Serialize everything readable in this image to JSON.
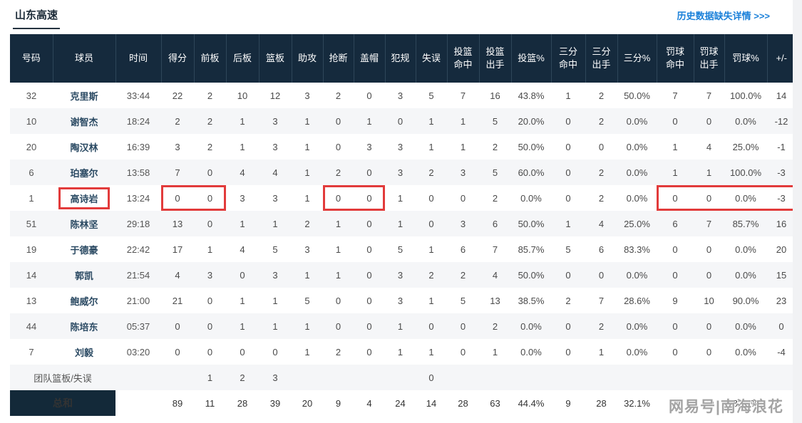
{
  "header": {
    "team_name": "山东高速",
    "history_link": "历史数据缺失详情 >>>"
  },
  "colors": {
    "header_bg": "#152a3d",
    "total_bg": "#132939",
    "accent_blue": "#1a80d9",
    "highlight_red": "#e23b3b",
    "row_alt_bg": "#f5f6f8"
  },
  "table": {
    "columns": [
      "号码",
      "球员",
      "时间",
      "得分",
      "前板",
      "后板",
      "篮板",
      "助攻",
      "抢断",
      "盖帽",
      "犯规",
      "失误",
      "投篮\n命中",
      "投篮\n出手",
      "投篮%",
      "三分\n命中",
      "三分\n出手",
      "三分%",
      "罚球\n命中",
      "罚球\n出手",
      "罚球%",
      "+/-"
    ],
    "players": [
      {
        "no": "32",
        "name": "克里斯",
        "time": "33:44",
        "stats": [
          "22",
          "2",
          "10",
          "12",
          "3",
          "2",
          "0",
          "3",
          "5",
          "7",
          "16",
          "43.8%",
          "1",
          "2",
          "50.0%",
          "7",
          "7",
          "100.0%",
          "14"
        ]
      },
      {
        "no": "10",
        "name": "谢智杰",
        "time": "18:24",
        "stats": [
          "2",
          "2",
          "1",
          "3",
          "1",
          "0",
          "1",
          "0",
          "1",
          "1",
          "5",
          "20.0%",
          "0",
          "2",
          "0.0%",
          "0",
          "0",
          "0.0%",
          "-12"
        ]
      },
      {
        "no": "20",
        "name": "陶汉林",
        "time": "16:39",
        "stats": [
          "3",
          "2",
          "1",
          "3",
          "1",
          "0",
          "3",
          "3",
          "1",
          "1",
          "2",
          "50.0%",
          "0",
          "0",
          "0.0%",
          "1",
          "4",
          "25.0%",
          "-1"
        ]
      },
      {
        "no": "6",
        "name": "珀塞尔",
        "time": "13:58",
        "stats": [
          "7",
          "0",
          "4",
          "4",
          "1",
          "2",
          "0",
          "3",
          "2",
          "3",
          "5",
          "60.0%",
          "0",
          "2",
          "0.0%",
          "1",
          "1",
          "100.0%",
          "-3"
        ]
      },
      {
        "no": "1",
        "name": "高诗岩",
        "time": "13:24",
        "stats": [
          "0",
          "0",
          "3",
          "3",
          "1",
          "0",
          "0",
          "1",
          "0",
          "0",
          "2",
          "0.0%",
          "0",
          "2",
          "0.0%",
          "0",
          "0",
          "0.0%",
          "-3"
        ]
      },
      {
        "no": "51",
        "name": "陈林坚",
        "time": "29:18",
        "stats": [
          "13",
          "0",
          "1",
          "1",
          "2",
          "1",
          "0",
          "1",
          "0",
          "3",
          "6",
          "50.0%",
          "1",
          "4",
          "25.0%",
          "6",
          "7",
          "85.7%",
          "16"
        ]
      },
      {
        "no": "19",
        "name": "于德豪",
        "time": "22:42",
        "stats": [
          "17",
          "1",
          "4",
          "5",
          "3",
          "1",
          "0",
          "5",
          "1",
          "6",
          "7",
          "85.7%",
          "5",
          "6",
          "83.3%",
          "0",
          "0",
          "0.0%",
          "20"
        ]
      },
      {
        "no": "14",
        "name": "郭凯",
        "time": "21:54",
        "stats": [
          "4",
          "3",
          "0",
          "3",
          "1",
          "1",
          "0",
          "3",
          "2",
          "2",
          "4",
          "50.0%",
          "0",
          "0",
          "0.0%",
          "0",
          "0",
          "0.0%",
          "15"
        ]
      },
      {
        "no": "13",
        "name": "鲍威尔",
        "time": "21:00",
        "stats": [
          "21",
          "0",
          "1",
          "1",
          "5",
          "0",
          "0",
          "3",
          "1",
          "5",
          "13",
          "38.5%",
          "2",
          "7",
          "28.6%",
          "9",
          "10",
          "90.0%",
          "23"
        ]
      },
      {
        "no": "44",
        "name": "陈培东",
        "time": "05:37",
        "stats": [
          "0",
          "0",
          "1",
          "1",
          "1",
          "0",
          "0",
          "1",
          "0",
          "0",
          "2",
          "0.0%",
          "0",
          "2",
          "0.0%",
          "0",
          "0",
          "0.0%",
          "0"
        ]
      },
      {
        "no": "7",
        "name": "刘毅",
        "time": "03:20",
        "stats": [
          "0",
          "0",
          "0",
          "0",
          "1",
          "2",
          "0",
          "1",
          "1",
          "0",
          "1",
          "0.0%",
          "0",
          "1",
          "0.0%",
          "0",
          "0",
          "0.0%",
          "-4"
        ]
      }
    ],
    "team_row": {
      "label": "团队篮板/失误",
      "stats": [
        "",
        "1",
        "2",
        "3",
        "",
        "",
        "",
        "",
        "0",
        "",
        "",
        "",
        "",
        "",
        "",
        "",
        "",
        "",
        ""
      ]
    },
    "total_row": {
      "label": "总和",
      "stats": [
        "89",
        "11",
        "28",
        "39",
        "20",
        "9",
        "4",
        "24",
        "14",
        "28",
        "63",
        "44.4%",
        "9",
        "28",
        "32.1%",
        "24",
        "29",
        "82.8%",
        ""
      ]
    },
    "highlight": {
      "player": "高诗岩",
      "name_boxed": true,
      "stat_groups": [
        [
          0,
          1
        ],
        [
          5,
          6
        ],
        [
          15,
          18
        ]
      ]
    }
  },
  "watermark": "网易号|南海浪花"
}
